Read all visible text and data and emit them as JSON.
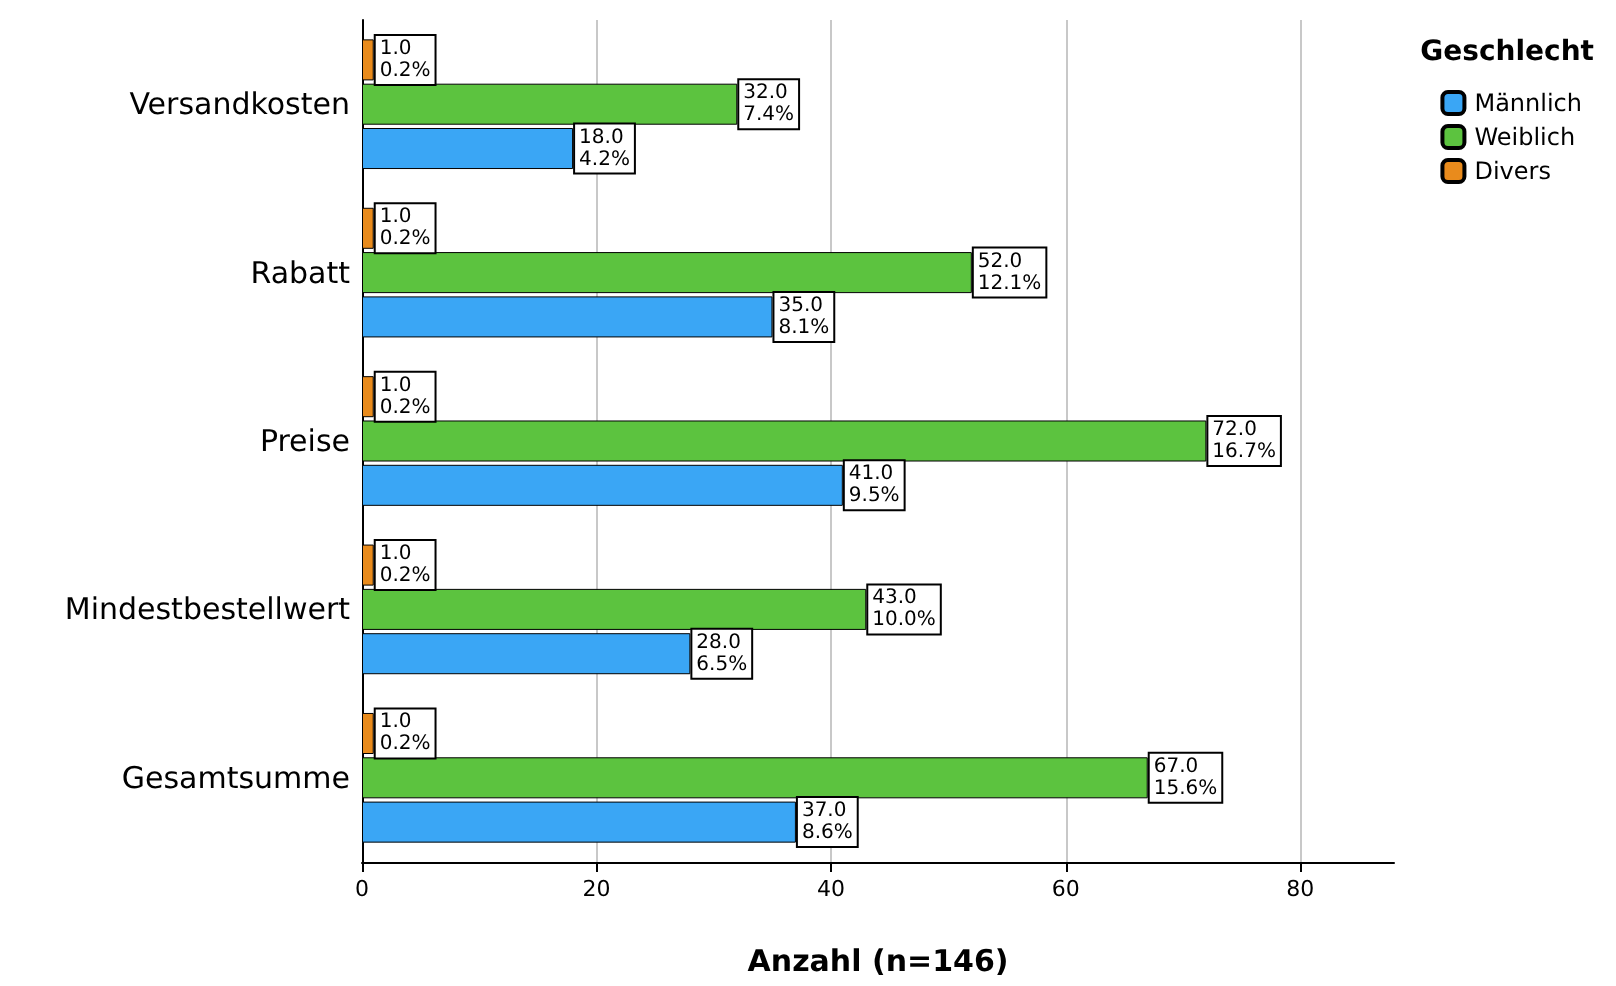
{
  "chart_data": {
    "type": "bar",
    "orientation": "horizontal",
    "xlabel": "Anzahl (n=146)",
    "legend_title": "Geschlecht",
    "categories": [
      "Versandkosten",
      "Rabatt",
      "Preise",
      "Mindestbestellwert",
      "Gesamtsumme"
    ],
    "series": [
      {
        "name": "Männlich",
        "color": "#3aa6f5",
        "values": [
          18,
          35,
          41,
          28,
          37
        ],
        "value_labels": [
          "18.0\n4.2%",
          "35.0\n8.1%",
          "41.0\n9.5%",
          "28.0\n6.5%",
          "37.0\n8.6%"
        ]
      },
      {
        "name": "Weiblich",
        "color": "#5cc33f",
        "values": [
          32,
          52,
          72,
          43,
          67
        ],
        "value_labels": [
          "32.0\n7.4%",
          "52.0\n12.1%",
          "72.0\n16.7%",
          "43.0\n10.0%",
          "67.0\n15.6%"
        ]
      },
      {
        "name": "Divers",
        "color": "#e98b1c",
        "values": [
          1,
          1,
          1,
          1,
          1
        ],
        "value_labels": [
          "1.0\n0.2%",
          "1.0\n0.2%",
          "1.0\n0.2%",
          "1.0\n0.2%",
          "1.0\n0.2%"
        ]
      }
    ],
    "xlim": [
      0,
      88
    ],
    "xticks": [
      0,
      20,
      40,
      60,
      80
    ],
    "grid": "x",
    "legend": "top right"
  }
}
